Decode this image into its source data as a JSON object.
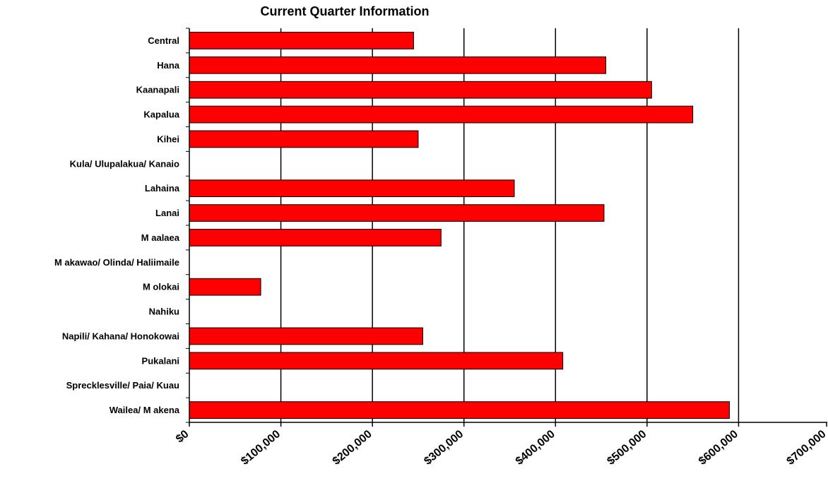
{
  "chart_data": {
    "type": "bar",
    "orientation": "horizontal",
    "title": "Current Quarter Information",
    "xlabel": "",
    "ylabel": "",
    "categories": [
      "Central",
      "Hana",
      "Kaanapali",
      "Kapalua",
      "Kihei",
      "Kula/ Ulupalakua/ Kanaio",
      "Lahaina",
      "Lanai",
      "M aalaea",
      "M akawao/ Olinda/ Haliimaile",
      "M olokai",
      "Nahiku",
      "Napili/ Kahana/ Honokowai",
      "Pukalani",
      "Sprecklesville/ Paia/ Kuau",
      "Wailea/ M akena"
    ],
    "values": [
      245000,
      455000,
      505000,
      550000,
      250000,
      0,
      355000,
      453000,
      275000,
      0,
      78000,
      0,
      255000,
      408000,
      0,
      590000
    ],
    "xlim": [
      0,
      700000
    ],
    "ticks": [
      0,
      100000,
      200000,
      300000,
      400000,
      500000,
      600000,
      700000
    ],
    "tick_labels": [
      "$0",
      "$100,000",
      "$200,000",
      "$300,000",
      "$400,000",
      "$500,000",
      "$600,000",
      "$700,000"
    ],
    "grid": true,
    "legend": "none",
    "bar_color": "#ff0000",
    "bar_edge_color": "#000000"
  }
}
